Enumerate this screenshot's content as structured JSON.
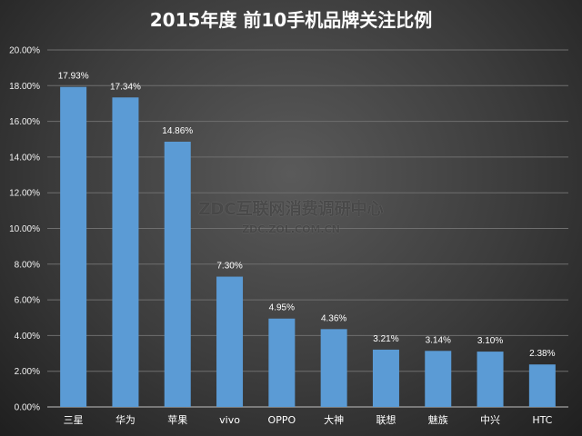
{
  "chart_data": {
    "type": "bar",
    "title": "2015年度 前10手机品牌关注比例",
    "categories": [
      "三星",
      "华为",
      "苹果",
      "vivo",
      "OPPO",
      "大神",
      "联想",
      "魅族",
      "中兴",
      "HTC"
    ],
    "values": [
      17.93,
      17.34,
      14.86,
      7.3,
      4.95,
      4.36,
      3.21,
      3.14,
      3.1,
      2.38
    ],
    "data_labels": [
      "17.93%",
      "17.34%",
      "14.86%",
      "7.30%",
      "4.95%",
      "4.36%",
      "3.21%",
      "3.14%",
      "3.10%",
      "2.38%"
    ],
    "yticks": [
      "0.00%",
      "2.00%",
      "4.00%",
      "6.00%",
      "8.00%",
      "10.00%",
      "12.00%",
      "14.00%",
      "16.00%",
      "18.00%",
      "20.00%"
    ],
    "ylim": [
      0,
      20
    ],
    "grid": true,
    "bar_color": "#5b9bd5"
  },
  "watermark": {
    "main": "ZDC互联网消费调研中心",
    "sub": "ZDC.ZOL.COM.CN"
  }
}
